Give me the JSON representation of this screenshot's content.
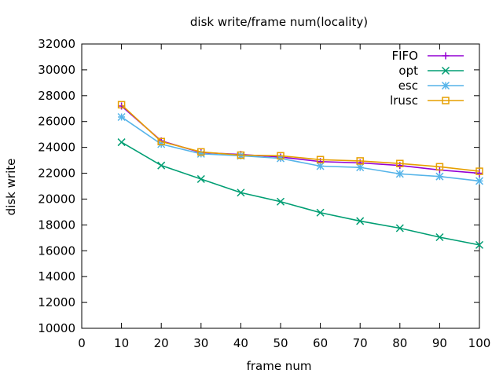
{
  "chart_data": {
    "type": "line",
    "title": "disk write/frame num(locality)",
    "xlabel": "frame num",
    "ylabel": "disk write",
    "xlim": [
      0,
      100
    ],
    "ylim": [
      10000,
      32000
    ],
    "xticks": [
      "0",
      "10",
      "20",
      "30",
      "40",
      "50",
      "60",
      "70",
      "80",
      "90",
      "100"
    ],
    "yticks": [
      "10000",
      "12000",
      "14000",
      "16000",
      "18000",
      "20000",
      "22000",
      "24000",
      "26000",
      "28000",
      "30000",
      "32000"
    ],
    "grid": false,
    "legend_position": "top-right",
    "x": [
      10,
      20,
      30,
      40,
      50,
      60,
      70,
      80,
      90,
      100
    ],
    "series": [
      {
        "name": "FIFO",
        "color": "#9400d3",
        "marker": "plus",
        "values": [
          27200,
          24500,
          23600,
          23450,
          23250,
          22900,
          22800,
          22600,
          22250,
          22000
        ]
      },
      {
        "name": "opt",
        "color": "#009e73",
        "marker": "cross",
        "values": [
          24400,
          22600,
          21550,
          20500,
          19800,
          18950,
          18300,
          17750,
          17050,
          16450
        ]
      },
      {
        "name": "esc",
        "color": "#56b4e9",
        "marker": "asterisk",
        "values": [
          26350,
          24250,
          23500,
          23350,
          23150,
          22550,
          22450,
          21950,
          21750,
          21400
        ]
      },
      {
        "name": "lrusc",
        "color": "#e69f00",
        "marker": "square",
        "values": [
          27300,
          24450,
          23650,
          23400,
          23350,
          23050,
          22950,
          22750,
          22500,
          22150
        ]
      }
    ]
  }
}
